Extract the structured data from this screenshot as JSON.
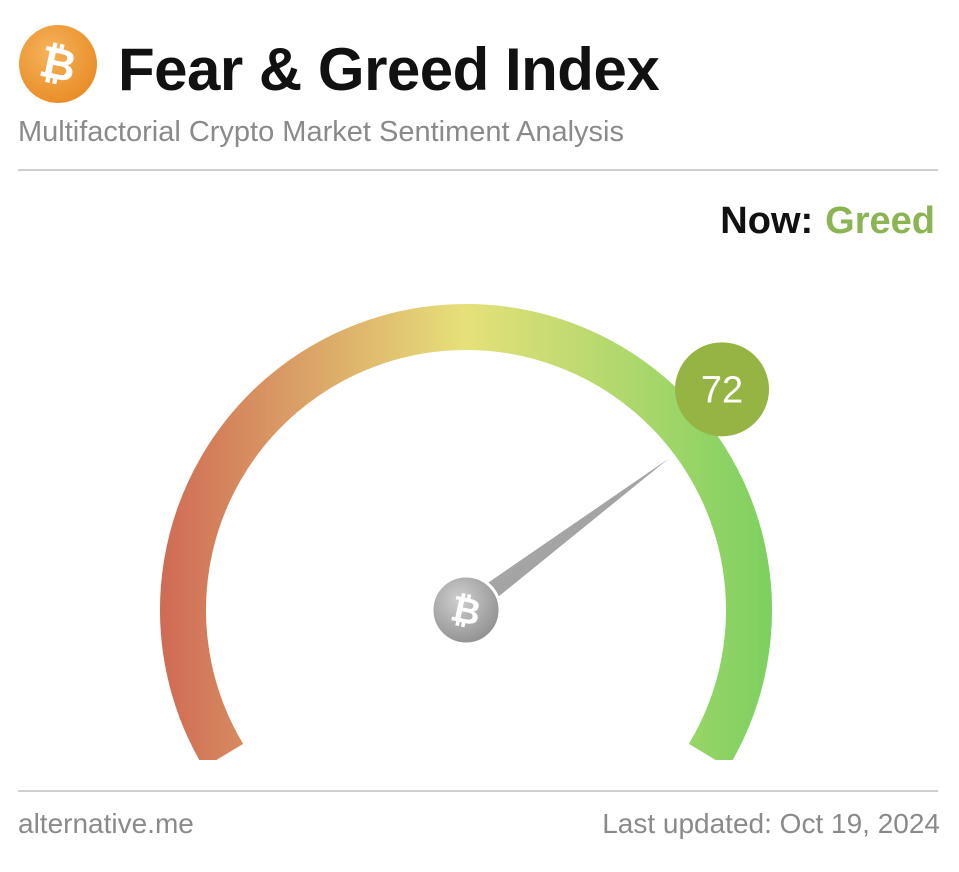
{
  "header": {
    "logo_icon": "bitcoin-icon",
    "logo_symbol": "₿",
    "title": "Fear & Greed Index",
    "subtitle": "Multifactorial Crypto Market Sentiment Analysis"
  },
  "status": {
    "now_label": "Now:",
    "now_value": "Greed",
    "now_color": "#8ab552"
  },
  "gauge": {
    "value": 72,
    "min": 0,
    "max": 100,
    "value_label": "72",
    "badge_color": "#96b444",
    "hub_icon": "bitcoin-icon",
    "hub_symbol": "₿",
    "colors": {
      "fear": "#d06a55",
      "neutral": "#e6e07a",
      "greed": "#7dd060"
    }
  },
  "footer": {
    "source": "alternative.me",
    "last_updated": "Last updated: Oct 19, 2024"
  }
}
